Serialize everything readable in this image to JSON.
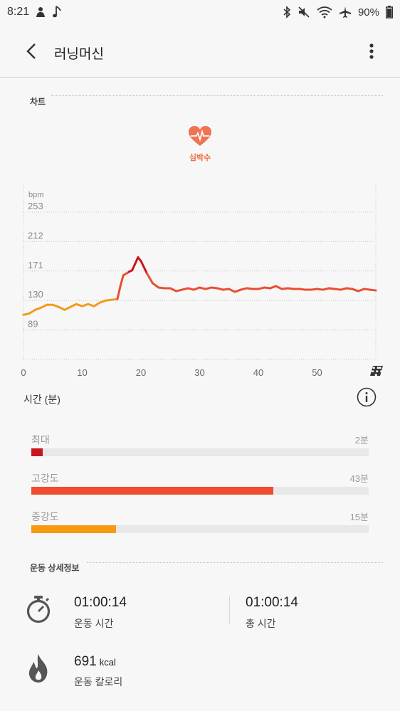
{
  "status_bar": {
    "time": "8:21",
    "battery": "90%",
    "left_icons": [
      "notification-icon",
      "music-note-icon"
    ],
    "right_icons": [
      "bluetooth-icon",
      "mute-icon",
      "wifi-icon",
      "airplane-icon",
      "battery-icon"
    ]
  },
  "header": {
    "title": "러닝머신"
  },
  "sections": {
    "chart": "차트",
    "details": "운동 상세정보"
  },
  "legend": {
    "label": "심박수",
    "color": "#ef6a3e"
  },
  "chart_data": {
    "type": "line",
    "title": "",
    "ylabel": "bpm",
    "xlabel": "",
    "y_ticks": [
      253,
      212,
      171,
      130,
      89
    ],
    "x_ticks": [
      0,
      10,
      20,
      30,
      40,
      50
    ],
    "xlim": [
      0,
      60
    ],
    "ylim": [
      48,
      253
    ],
    "grid": true,
    "colors": {
      "moderate": "#f39a1c",
      "high": "#e94e31",
      "max": "#c8161d",
      "gap": "#b3b3b3"
    },
    "series": [
      {
        "x": [
          0,
          1,
          2,
          3,
          4,
          5,
          6,
          7,
          8,
          9,
          10,
          11,
          12,
          13,
          14,
          15,
          16,
          16.5,
          17,
          18,
          18.5,
          19,
          19.5,
          20,
          21,
          22,
          23,
          24,
          25,
          26,
          27,
          28,
          29,
          30,
          31,
          32,
          33,
          34,
          35,
          36,
          37,
          38,
          39,
          40,
          41,
          42,
          43,
          44,
          45,
          46,
          47,
          48,
          49,
          50,
          51,
          52,
          53,
          54,
          55,
          56,
          57,
          58,
          59,
          60
        ],
        "y": [
          110,
          112,
          117,
          120,
          124,
          124,
          121,
          117,
          121,
          125,
          122,
          125,
          122,
          127,
          130,
          131,
          132,
          150,
          165,
          170,
          172,
          181,
          190,
          185,
          168,
          154,
          148,
          147,
          147,
          143,
          145,
          147,
          145,
          148,
          146,
          148,
          147,
          145,
          146,
          142,
          145,
          147,
          146,
          146,
          148,
          147,
          150,
          146,
          147,
          146,
          146,
          145,
          145,
          146,
          145,
          147,
          146,
          145,
          147,
          146,
          143,
          146,
          145,
          144
        ],
        "gap": [
          45.5,
          46.5
        ]
      }
    ]
  },
  "time_section": {
    "title": "시간 (분)",
    "zones": [
      {
        "label": "최대",
        "value": "2분",
        "minutes": 2,
        "color": "#c8161d"
      },
      {
        "label": "고강도",
        "value": "43분",
        "minutes": 43,
        "color": "#f04a30"
      },
      {
        "label": "중강도",
        "value": "15분",
        "minutes": 15,
        "color": "#f79a12"
      }
    ],
    "total_minutes": 60
  },
  "details": {
    "workout_time": {
      "value": "01:00:14",
      "label": "운동 시간"
    },
    "total_time": {
      "value": "01:00:14",
      "label": "총 시간"
    },
    "calories": {
      "value": "691",
      "unit": "kcal",
      "label": "운동 칼로리"
    }
  }
}
